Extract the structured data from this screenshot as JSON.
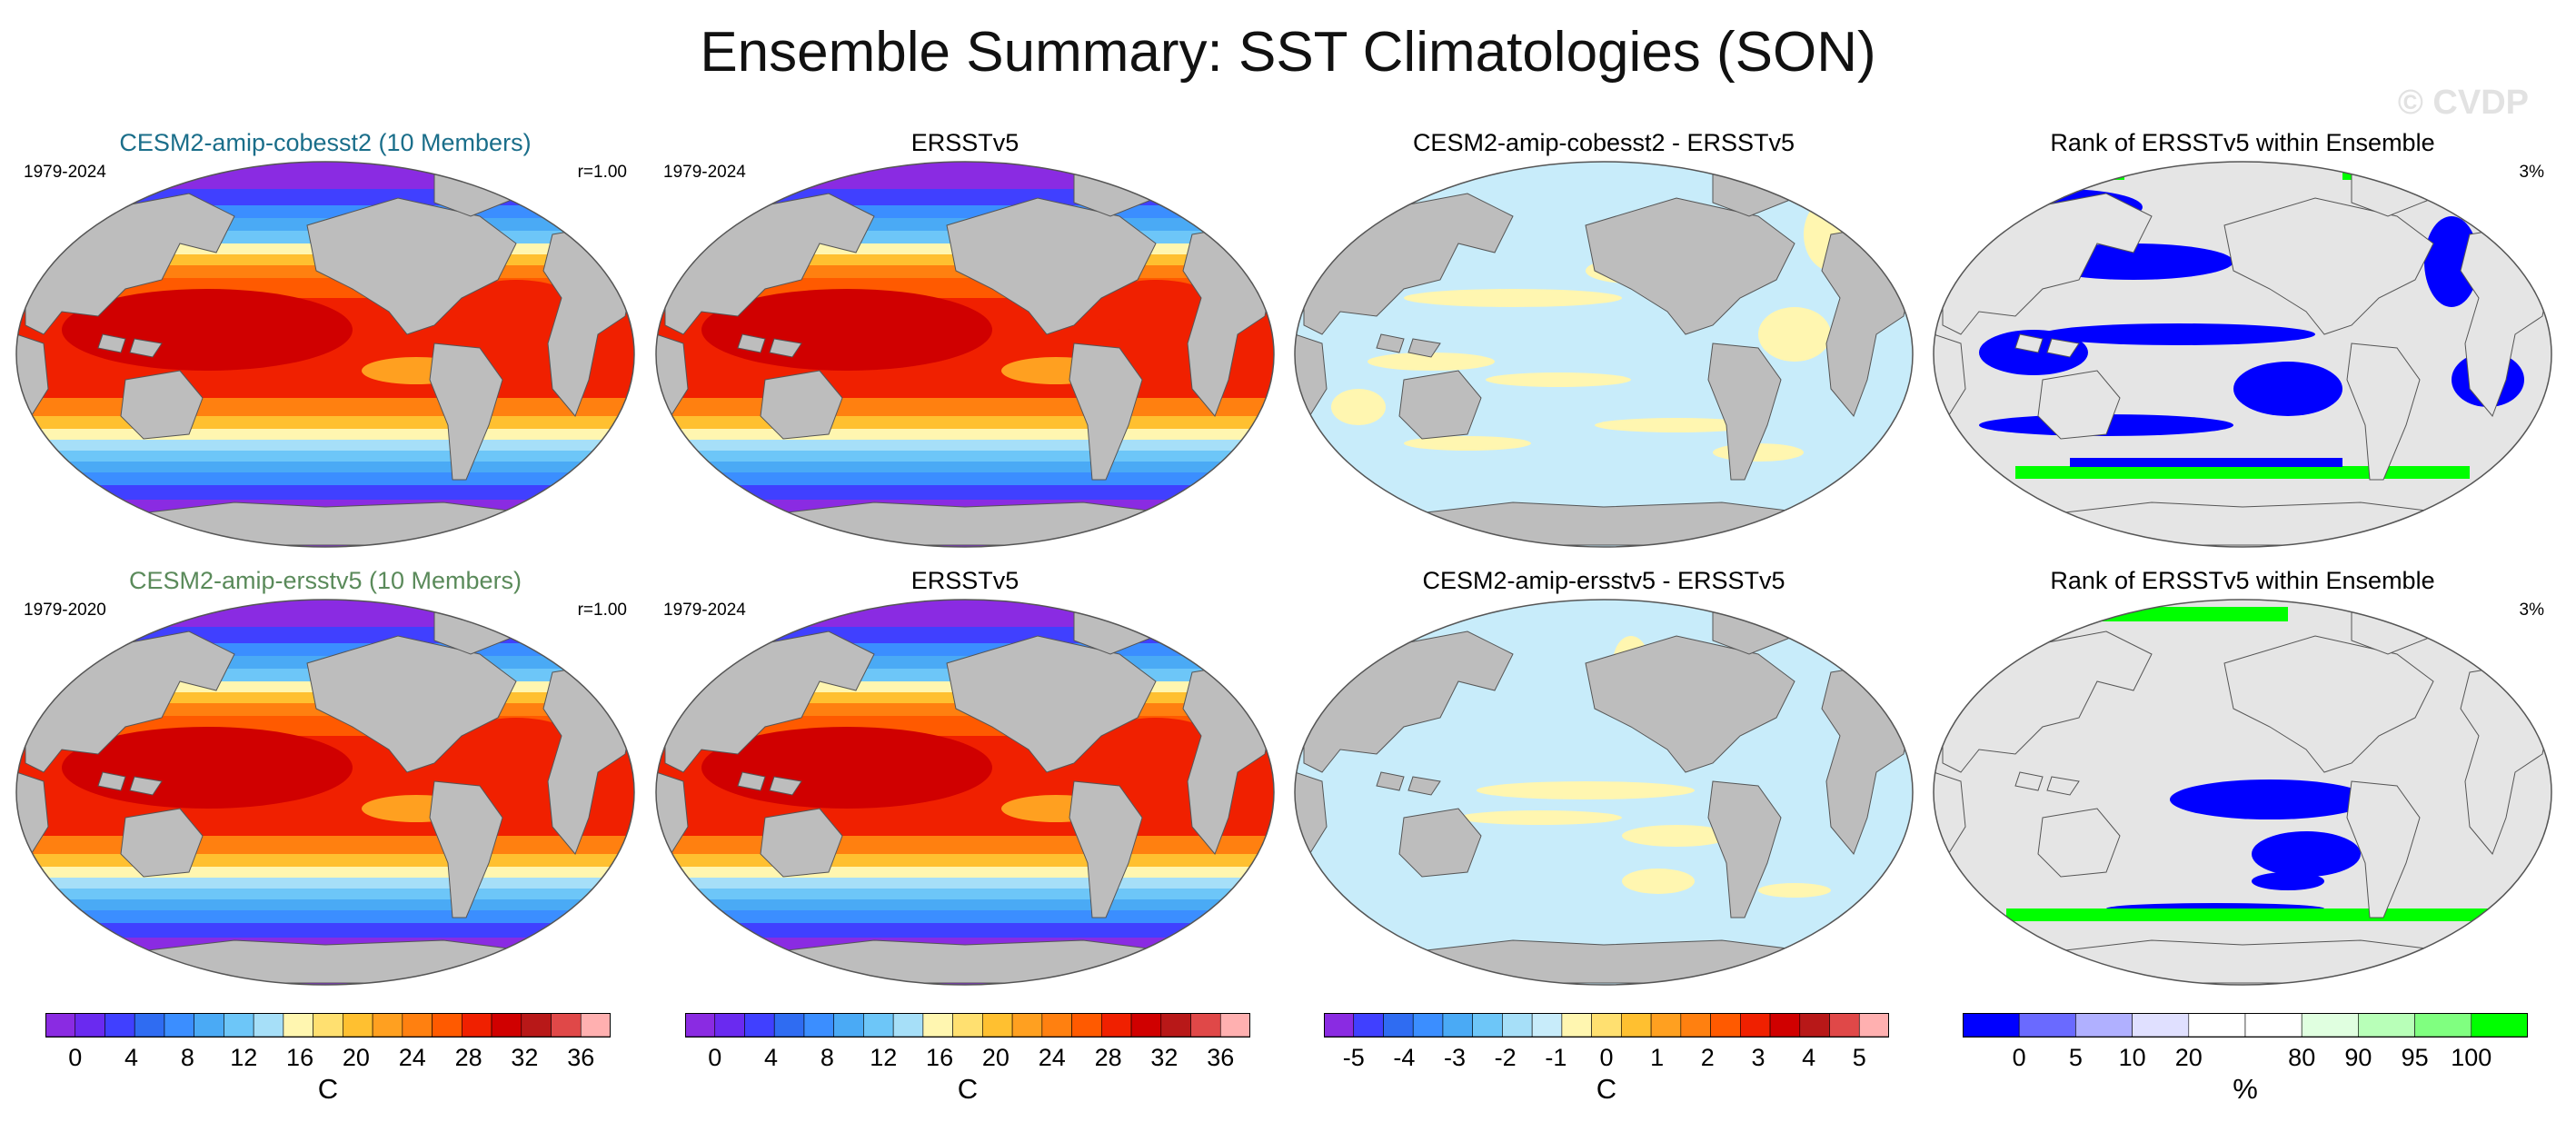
{
  "title": "Ensemble Summary: SST Climatologies (SON)",
  "watermark": "© CVDP",
  "colors": {
    "land": "#bdbdbd",
    "land_light": "#e5e5e5",
    "ocean_bg": "#ffffff",
    "sst": [
      "#8a2be2",
      "#6a2af0",
      "#4040ff",
      "#2f6cf2",
      "#3b8eff",
      "#4aaaf5",
      "#6dc6f8",
      "#a6dff8",
      "#fff6b0",
      "#ffe070",
      "#ffc030",
      "#ffa020",
      "#ff8010",
      "#ff5a00",
      "#f02000",
      "#d00000",
      "#b81818",
      "#e04848",
      "#ffb0b0"
    ],
    "diff": [
      "#8a2be2",
      "#4040ff",
      "#2f6cf2",
      "#3b8eff",
      "#4aaaf5",
      "#6dc6f8",
      "#a6dff8",
      "#c8ecfa",
      "#fff6b0",
      "#ffe070",
      "#ffc030",
      "#ffa020",
      "#ff8010",
      "#ff5a00",
      "#f02000",
      "#d00000",
      "#b81818",
      "#e04848",
      "#ffb0b0"
    ],
    "rank": [
      "#0000ff",
      "#6a6aff",
      "#b0b0ff",
      "#e0e0ff",
      "#ffffff",
      "#ffffff",
      "#e0ffe0",
      "#b8ffb8",
      "#80ff80",
      "#00ff00"
    ],
    "title_blue": "#1a6e8a",
    "title_green": "#5a8a5a"
  },
  "rows": [
    {
      "panels": [
        {
          "title": "CESM2-amip-cobesst2 (10 Members)",
          "left": "1979-2024",
          "right": "r=1.00",
          "kind": "sst"
        },
        {
          "title": "ERSSTv5",
          "left": "1979-2024",
          "right": "",
          "kind": "sst"
        },
        {
          "title": "CESM2-amip-cobesst2 - ERSSTv5",
          "left": "",
          "right": "",
          "kind": "diff"
        },
        {
          "title": "Rank of ERSSTv5 within Ensemble",
          "left": "",
          "right": "3%",
          "kind": "rank"
        }
      ]
    },
    {
      "panels": [
        {
          "title": "CESM2-amip-ersstv5 (10 Members)",
          "left": "1979-2020",
          "right": "r=1.00",
          "kind": "sst"
        },
        {
          "title": "ERSSTv5",
          "left": "1979-2024",
          "right": "",
          "kind": "sst"
        },
        {
          "title": "CESM2-amip-ersstv5 - ERSSTv5",
          "left": "",
          "right": "",
          "kind": "diff"
        },
        {
          "title": "Rank of ERSSTv5 within Ensemble",
          "left": "",
          "right": "3%",
          "kind": "rank"
        }
      ]
    }
  ],
  "colorbars": [
    {
      "label": "C",
      "kind": "sst",
      "ticks": [
        "0",
        "4",
        "8",
        "12",
        "16",
        "20",
        "24",
        "28",
        "32",
        "36"
      ]
    },
    {
      "label": "C",
      "kind": "sst",
      "ticks": [
        "0",
        "4",
        "8",
        "12",
        "16",
        "20",
        "24",
        "28",
        "32",
        "36"
      ]
    },
    {
      "label": "C",
      "kind": "diff",
      "ticks": [
        "-5",
        "-4",
        "-3",
        "-2",
        "-1",
        "0",
        "1",
        "2",
        "3",
        "4",
        "5"
      ]
    },
    {
      "label": "%",
      "kind": "rank",
      "ticks": [
        "0",
        "5",
        "10",
        "20",
        "80",
        "90",
        "95",
        "100"
      ]
    }
  ]
}
